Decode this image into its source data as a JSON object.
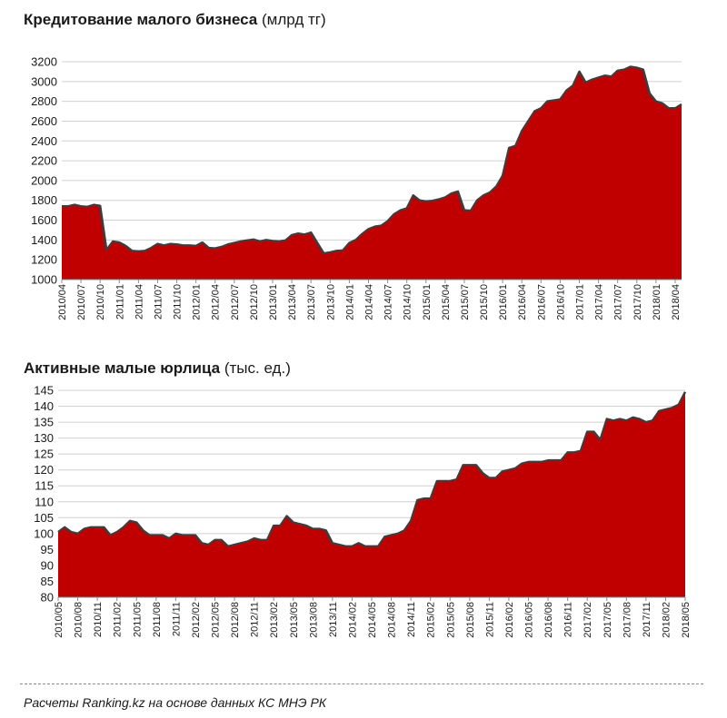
{
  "colors": {
    "fill": "#c00000",
    "stroke": "#3d3d3d",
    "grid": "#d0d0d0"
  },
  "source_text": "Расчеты Ranking.kz на основе данных КС МНЭ РК",
  "chart_data": [
    {
      "type": "area",
      "title": "Кредитование малого бизнеса",
      "unit": "(млрд тг)",
      "ylim": [
        1000,
        3200
      ],
      "y_ticks": [
        1000,
        1200,
        1400,
        1600,
        1800,
        2000,
        2200,
        2400,
        2600,
        2800,
        3000,
        3200
      ],
      "x_tick_labels": [
        "2010/04",
        "2010/07",
        "2010/10",
        "2011/01",
        "2011/04",
        "2011/07",
        "2011/10",
        "2012/01",
        "2012/04",
        "2012/07",
        "2012/10",
        "2013/01",
        "2013/04",
        "2013/07",
        "2013/10",
        "2014/01",
        "2014/04",
        "2014/07",
        "2014/10",
        "2015/01",
        "2015/04",
        "2015/07",
        "2015/10",
        "2016/01",
        "2016/04",
        "2016/07",
        "2016/10",
        "2017/01",
        "2017/04",
        "2017/07",
        "2017/10",
        "2018/01",
        "2018/04"
      ],
      "start_period": "2010/04",
      "frequency": "monthly",
      "values": [
        1740,
        1740,
        1755,
        1740,
        1735,
        1755,
        1745,
        1300,
        1385,
        1375,
        1340,
        1290,
        1285,
        1290,
        1320,
        1360,
        1345,
        1360,
        1355,
        1345,
        1345,
        1340,
        1375,
        1320,
        1315,
        1330,
        1355,
        1370,
        1385,
        1395,
        1405,
        1385,
        1400,
        1390,
        1385,
        1395,
        1450,
        1465,
        1455,
        1475,
        1370,
        1265,
        1275,
        1290,
        1295,
        1370,
        1400,
        1460,
        1510,
        1535,
        1545,
        1590,
        1660,
        1700,
        1720,
        1850,
        1800,
        1790,
        1795,
        1810,
        1830,
        1870,
        1890,
        1700,
        1695,
        1800,
        1850,
        1880,
        1940,
        2050,
        2330,
        2350,
        2500,
        2600,
        2700,
        2730,
        2800,
        2810,
        2820,
        2910,
        2960,
        3100,
        2990,
        3020,
        3040,
        3060,
        3050,
        3110,
        3120,
        3150,
        3140,
        3120,
        2880,
        2800,
        2780,
        2730,
        2730,
        2770
      ]
    },
    {
      "type": "area",
      "title": "Активные малые юрлица",
      "unit": "(тыс. ед.)",
      "ylim": [
        80,
        145
      ],
      "y_ticks": [
        80,
        85,
        90,
        95,
        100,
        105,
        110,
        115,
        120,
        125,
        130,
        135,
        140,
        145
      ],
      "x_tick_labels": [
        "2010/05",
        "2010/08",
        "2010/11",
        "2011/02",
        "2011/05",
        "2011/08",
        "2011/11",
        "2012/02",
        "2012/05",
        "2012/08",
        "2012/11",
        "2013/02",
        "2013/05",
        "2013/08",
        "2013/11",
        "2014/02",
        "2014/05",
        "2014/08",
        "2014/11",
        "2015/02",
        "2015/05",
        "2015/08",
        "2015/11",
        "2016/02",
        "2016/05",
        "2016/08",
        "2016/11",
        "2017/02",
        "2017/05",
        "2017/08",
        "2017/11",
        "2018/02",
        "2018/05"
      ],
      "start_period": "2010/05",
      "frequency": "monthly",
      "values": [
        100.5,
        102,
        100.5,
        100,
        101.5,
        102,
        102,
        102,
        99.5,
        100.5,
        102,
        104,
        103.5,
        101,
        99.5,
        99.5,
        99.5,
        98.5,
        100,
        99.5,
        99.5,
        99.5,
        97,
        96.5,
        98,
        98,
        96,
        96.5,
        97,
        97.5,
        98.5,
        98,
        98,
        102.5,
        102.5,
        105.5,
        103.5,
        103,
        102.5,
        101.5,
        101.5,
        101,
        97,
        96.5,
        96,
        96,
        97,
        96,
        96,
        96,
        99,
        99.5,
        100,
        101,
        104,
        110.5,
        111,
        111,
        116.5,
        116.5,
        116.5,
        117,
        121.5,
        121.5,
        121.5,
        119,
        117.5,
        117.5,
        119.5,
        120,
        120.5,
        122,
        122.5,
        122.5,
        122.5,
        123,
        123,
        123,
        125.5,
        125.5,
        126,
        132,
        132,
        129.5,
        136,
        135.5,
        136,
        135.5,
        136.5,
        136,
        135,
        135.5,
        138.5,
        139,
        139.5,
        140.5,
        144.5
      ]
    }
  ]
}
